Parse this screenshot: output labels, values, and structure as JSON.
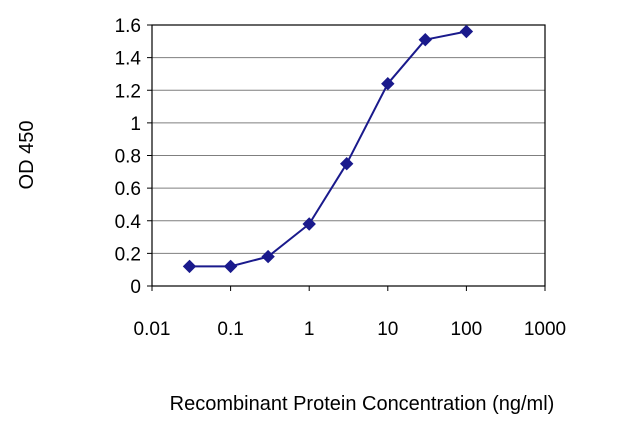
{
  "chart_data": {
    "type": "line",
    "title": "",
    "xlabel": "Recombinant Protein Concentration (ng/ml)",
    "ylabel": "OD 450",
    "x_scale": "log",
    "xlim": [
      0.01,
      1000
    ],
    "ylim": [
      0,
      1.6
    ],
    "x_ticks": [
      "0.01",
      "0.1",
      "1",
      "10",
      "100",
      "1000"
    ],
    "y_ticks": [
      "0",
      "0.2",
      "0.4",
      "0.6",
      "0.8",
      "1",
      "1.2",
      "1.4",
      "1.6"
    ],
    "grid": "horizontal",
    "series": [
      {
        "x": [
          0.03,
          0.1,
          0.3,
          1,
          3,
          10,
          30,
          100
        ],
        "y": [
          0.12,
          0.12,
          0.18,
          0.38,
          0.75,
          1.24,
          1.51,
          1.56
        ],
        "color": "#1a1a8c",
        "marker": "diamond"
      }
    ]
  }
}
